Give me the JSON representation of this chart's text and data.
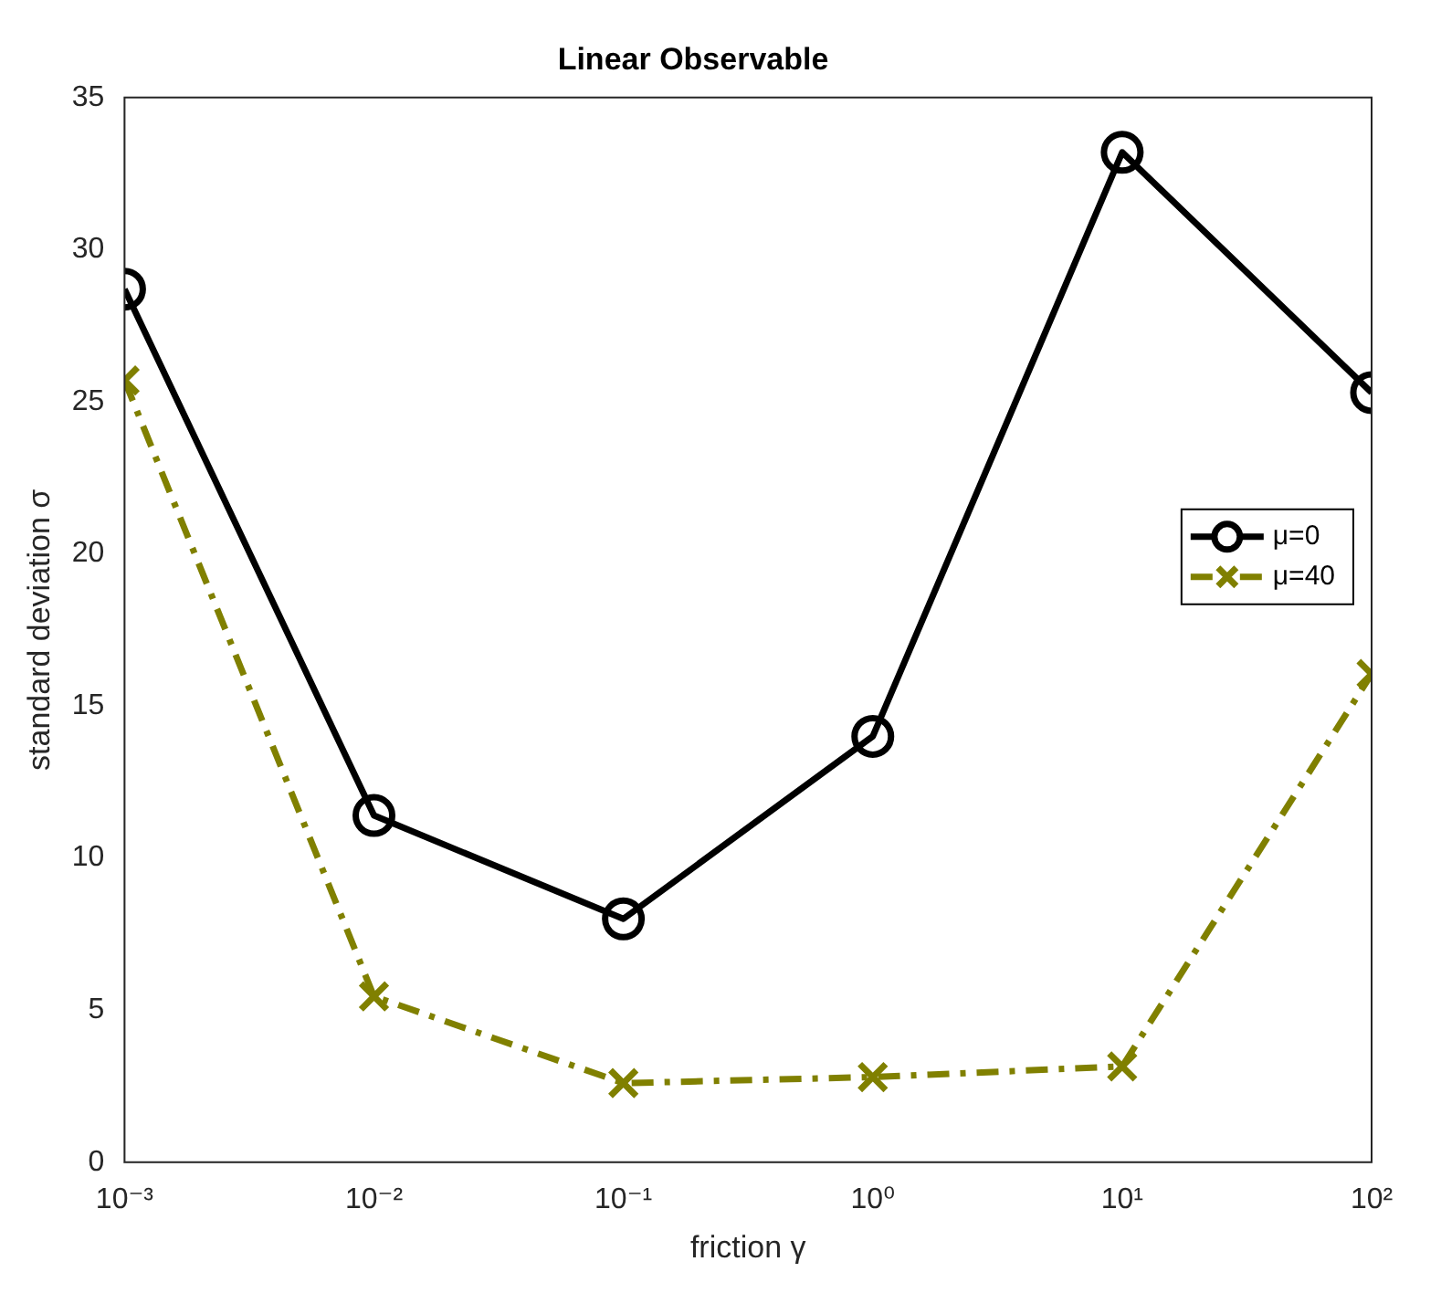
{
  "chart_data": {
    "type": "line",
    "title": "Linear Observable",
    "xlabel": "friction γ",
    "ylabel": "standard deviation σ",
    "x": [
      0.001,
      0.01,
      0.1,
      1,
      10,
      100
    ],
    "series": [
      {
        "name": "μ=0",
        "color": "#000000",
        "marker": "circle",
        "line_style": "solid",
        "values": [
          28.7,
          11.4,
          8.0,
          14.0,
          33.2,
          25.3
        ]
      },
      {
        "name": "μ=40",
        "color": "#808000",
        "marker": "cross",
        "line_style": "dashed",
        "values": [
          25.7,
          5.45,
          2.6,
          2.8,
          3.15,
          16.05
        ]
      }
    ],
    "log": "x",
    "xlim": [
      0.001,
      100
    ],
    "xticks": [
      {
        "value": 0.001,
        "label": "10⁻³"
      },
      {
        "value": 0.01,
        "label": "10⁻²"
      },
      {
        "value": 0.1,
        "label": "10⁻¹"
      },
      {
        "value": 1,
        "label": "10⁰"
      },
      {
        "value": 10,
        "label": "10¹"
      },
      {
        "value": 100,
        "label": "10²"
      }
    ],
    "ylim": [
      0,
      35
    ],
    "yticks": [
      0,
      5,
      10,
      15,
      20,
      25,
      30,
      35
    ],
    "grid": false,
    "legend": "right"
  }
}
